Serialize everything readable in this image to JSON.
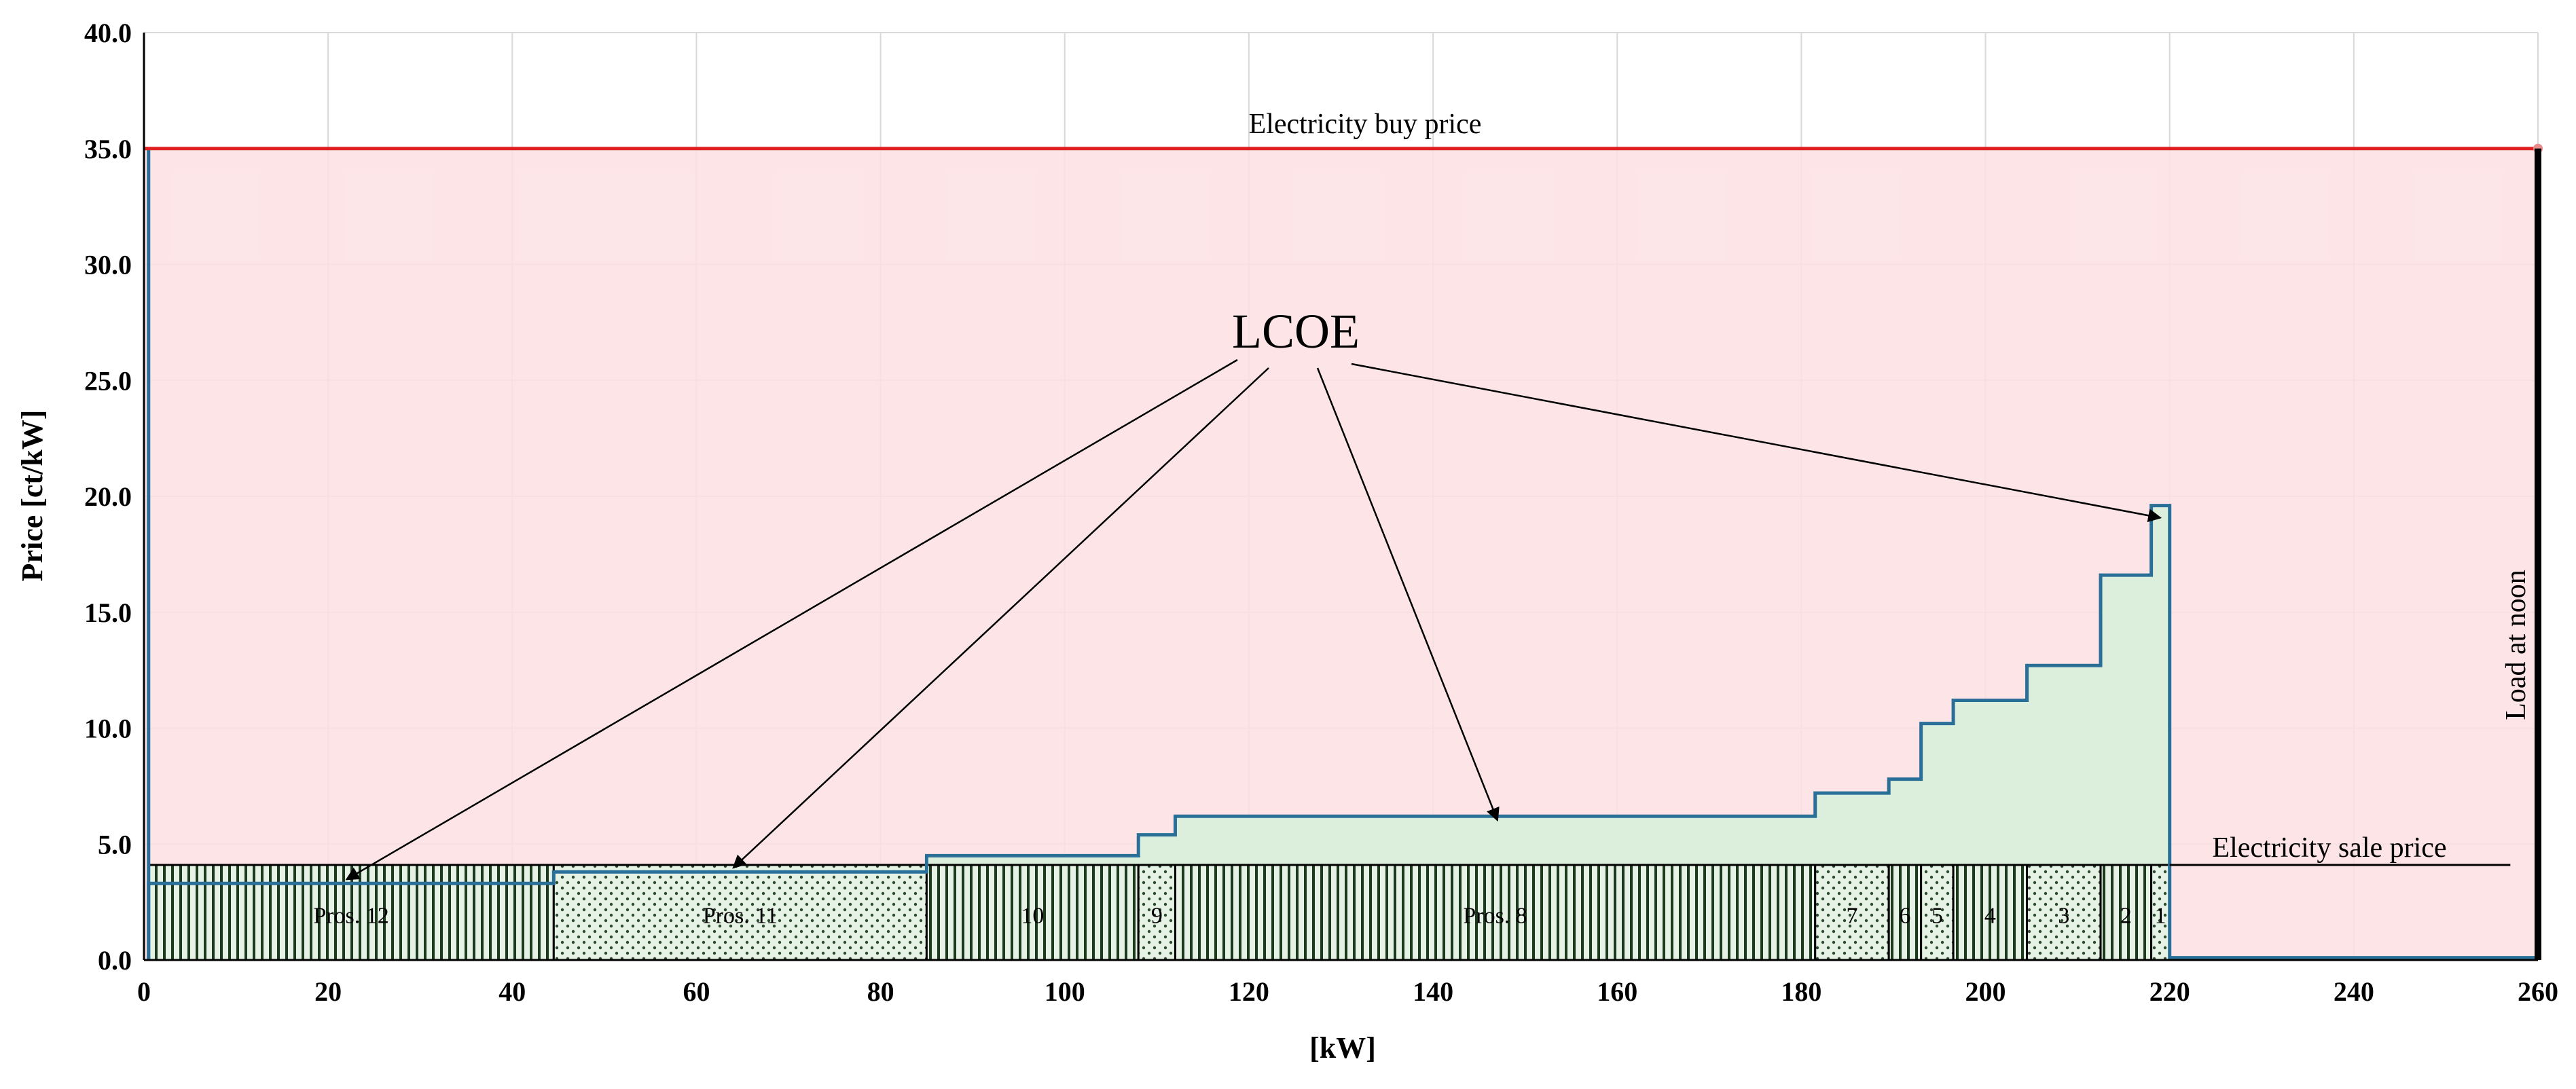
{
  "chart_data": {
    "type": "area",
    "title": "",
    "xlabel": "[kW]",
    "ylabel": "Price [ct/kW]",
    "xlim": [
      0,
      260
    ],
    "ylim": [
      0,
      40
    ],
    "xticks": [
      "0",
      "20",
      "40",
      "60",
      "80",
      "100",
      "120",
      "140",
      "160",
      "180",
      "200",
      "220",
      "240",
      "260"
    ],
    "yticks": [
      "0.0",
      "5.0",
      "10.0",
      "15.0",
      "20.0",
      "25.0",
      "30.0",
      "35.0",
      "40.0"
    ],
    "grid": true,
    "buy_price": {
      "label": "Electricity buy price",
      "value": 35.0,
      "x": [
        0,
        260
      ],
      "color": "#e02020"
    },
    "sale_price": {
      "label": "Electricity sale price",
      "value": 4.1,
      "x": [
        220,
        257
      ]
    },
    "load": {
      "label": "Load at noon",
      "x": 260,
      "y": [
        0,
        35
      ]
    },
    "lcoe_label": "LCOE",
    "segments": [
      {
        "label": "Pros. 12",
        "x0": 0.5,
        "x1": 44.5,
        "lcoe": 3.3,
        "pattern": "vstripe"
      },
      {
        "label": "Pros. 11",
        "x0": 44.5,
        "x1": 85,
        "lcoe": 3.8,
        "pattern": "dots"
      },
      {
        "label": "10",
        "x0": 85,
        "x1": 108,
        "lcoe": 4.5,
        "pattern": "vstripe"
      },
      {
        "label": "9",
        "x0": 108,
        "x1": 112,
        "lcoe": 5.4,
        "pattern": "dots"
      },
      {
        "label": "Pros. 8",
        "x0": 112,
        "x1": 181.5,
        "lcoe": 6.2,
        "pattern": "vstripe"
      },
      {
        "label": "7",
        "x0": 181.5,
        "x1": 189.5,
        "lcoe": 7.2,
        "pattern": "dots"
      },
      {
        "label": "6",
        "x0": 189.5,
        "x1": 193,
        "lcoe": 7.8,
        "pattern": "vstripe"
      },
      {
        "label": "5",
        "x0": 193,
        "x1": 196.5,
        "lcoe": 10.2,
        "pattern": "dots"
      },
      {
        "label": "4",
        "x0": 196.5,
        "x1": 204.5,
        "lcoe": 11.2,
        "pattern": "vstripe"
      },
      {
        "label": "3",
        "x0": 204.5,
        "x1": 212.5,
        "lcoe": 12.7,
        "pattern": "dots"
      },
      {
        "label": "2",
        "x0": 212.5,
        "x1": 218,
        "lcoe": 16.6,
        "pattern": "vstripe"
      },
      {
        "label": "1",
        "x0": 218,
        "x1": 220,
        "lcoe": 19.6,
        "pattern": "dots"
      }
    ],
    "colors": {
      "buy_area": "#fde1e3",
      "lcoe_area": "#dcefdc",
      "lcoe_line": "#2a6f97",
      "stripe": "#1e3a1e",
      "dots": "#2e4a2e",
      "segment_fill": "#e6f2e6"
    }
  }
}
